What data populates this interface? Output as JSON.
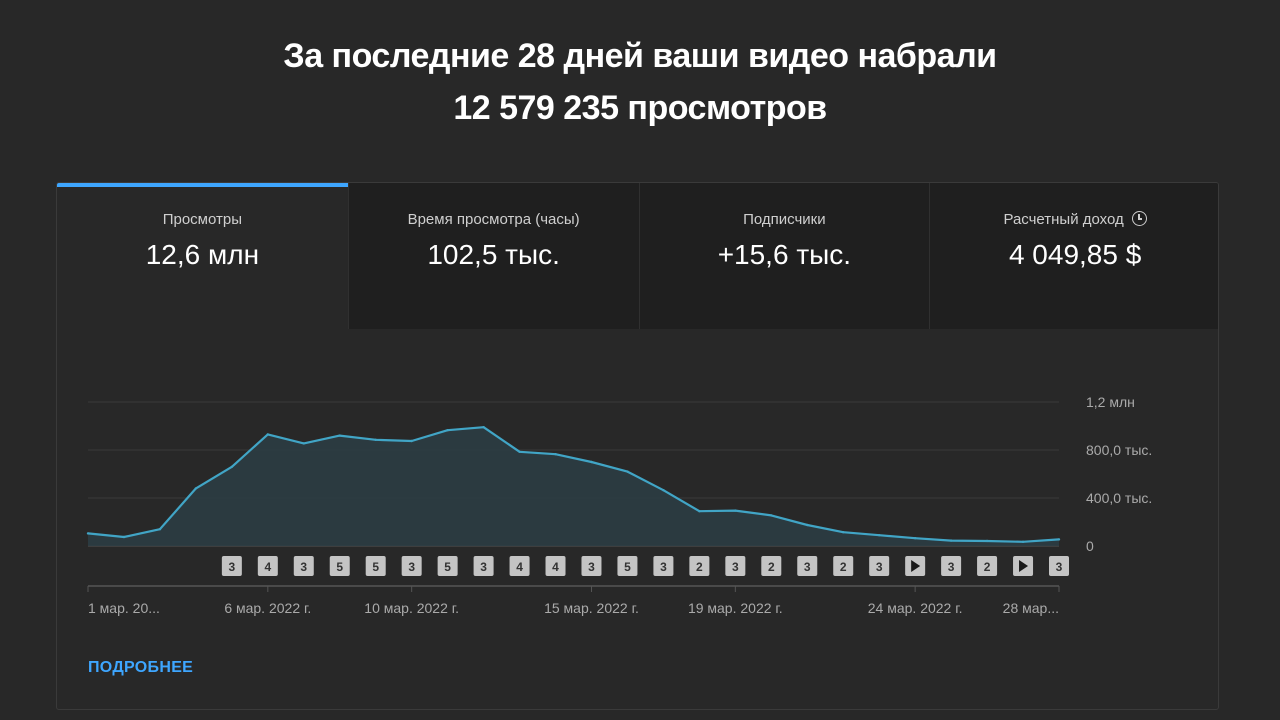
{
  "header": {
    "line1": "За последние 28 дней ваши видео набрали",
    "line2": "12 579 235 просмотров"
  },
  "tabs": [
    {
      "label": "Просмотры",
      "value": "12,6 млн",
      "active": true
    },
    {
      "label": "Время просмотра (часы)",
      "value": "102,5 тыс."
    },
    {
      "label": "Подписчики",
      "value": "+15,6 тыс."
    },
    {
      "label": "Расчетный доход",
      "value": "4 049,85 $",
      "icon": "clock-icon"
    }
  ],
  "more_link": "ПОДРОБНЕЕ",
  "colors": {
    "accent": "#3ea6ff",
    "line": "#41a5c6",
    "area": "#2b3d44",
    "grid": "#3a3a3a",
    "marker_bg": "#c4c4c4"
  },
  "chart_data": {
    "type": "area",
    "ylim": [
      0,
      1200000
    ],
    "y_ticks": [
      {
        "value": 0,
        "label": "0"
      },
      {
        "value": 400000,
        "label": "400,0 тыс."
      },
      {
        "value": 800000,
        "label": "800,0 тыс."
      },
      {
        "value": 1200000,
        "label": "1,2 млн"
      }
    ],
    "x_labels": [
      {
        "day": 1,
        "label": "1 мар. 20..."
      },
      {
        "day": 6,
        "label": "6 мар. 2022 г."
      },
      {
        "day": 10,
        "label": "10 мар. 2022 г."
      },
      {
        "day": 15,
        "label": "15 мар. 2022 г."
      },
      {
        "day": 19,
        "label": "19 мар. 2022 г."
      },
      {
        "day": 24,
        "label": "24 мар. 2022 г."
      },
      {
        "day": 28,
        "label": "28 мар..."
      }
    ],
    "series": [
      {
        "x": [
          1,
          2,
          3,
          4,
          5,
          6,
          7,
          8,
          9,
          10,
          11,
          12,
          13,
          14,
          15,
          16,
          17,
          18,
          19,
          20,
          21,
          22,
          23,
          24,
          25,
          26,
          27,
          28
        ],
        "values": [
          105000,
          75000,
          140000,
          480000,
          660000,
          930000,
          855000,
          920000,
          885000,
          875000,
          965000,
          990000,
          785000,
          765000,
          700000,
          620000,
          465000,
          290000,
          295000,
          255000,
          175000,
          115000,
          90000,
          65000,
          45000,
          42000,
          35000,
          55000
        ]
      }
    ],
    "markers": [
      {
        "day": 5,
        "label": "3"
      },
      {
        "day": 6,
        "label": "4"
      },
      {
        "day": 7,
        "label": "3"
      },
      {
        "day": 8,
        "label": "5"
      },
      {
        "day": 9,
        "label": "5"
      },
      {
        "day": 10,
        "label": "3"
      },
      {
        "day": 11,
        "label": "5"
      },
      {
        "day": 12,
        "label": "3"
      },
      {
        "day": 13,
        "label": "4"
      },
      {
        "day": 14,
        "label": "4"
      },
      {
        "day": 15,
        "label": "3"
      },
      {
        "day": 16,
        "label": "5"
      },
      {
        "day": 17,
        "label": "3"
      },
      {
        "day": 18,
        "label": "2"
      },
      {
        "day": 19,
        "label": "3"
      },
      {
        "day": 20,
        "label": "2"
      },
      {
        "day": 21,
        "label": "3"
      },
      {
        "day": 22,
        "label": "2"
      },
      {
        "day": 23,
        "label": "3"
      },
      {
        "day": 24,
        "label": "play-icon"
      },
      {
        "day": 25,
        "label": "3"
      },
      {
        "day": 26,
        "label": "2"
      },
      {
        "day": 27,
        "label": "play-icon"
      },
      {
        "day": 28,
        "label": "3"
      }
    ]
  }
}
